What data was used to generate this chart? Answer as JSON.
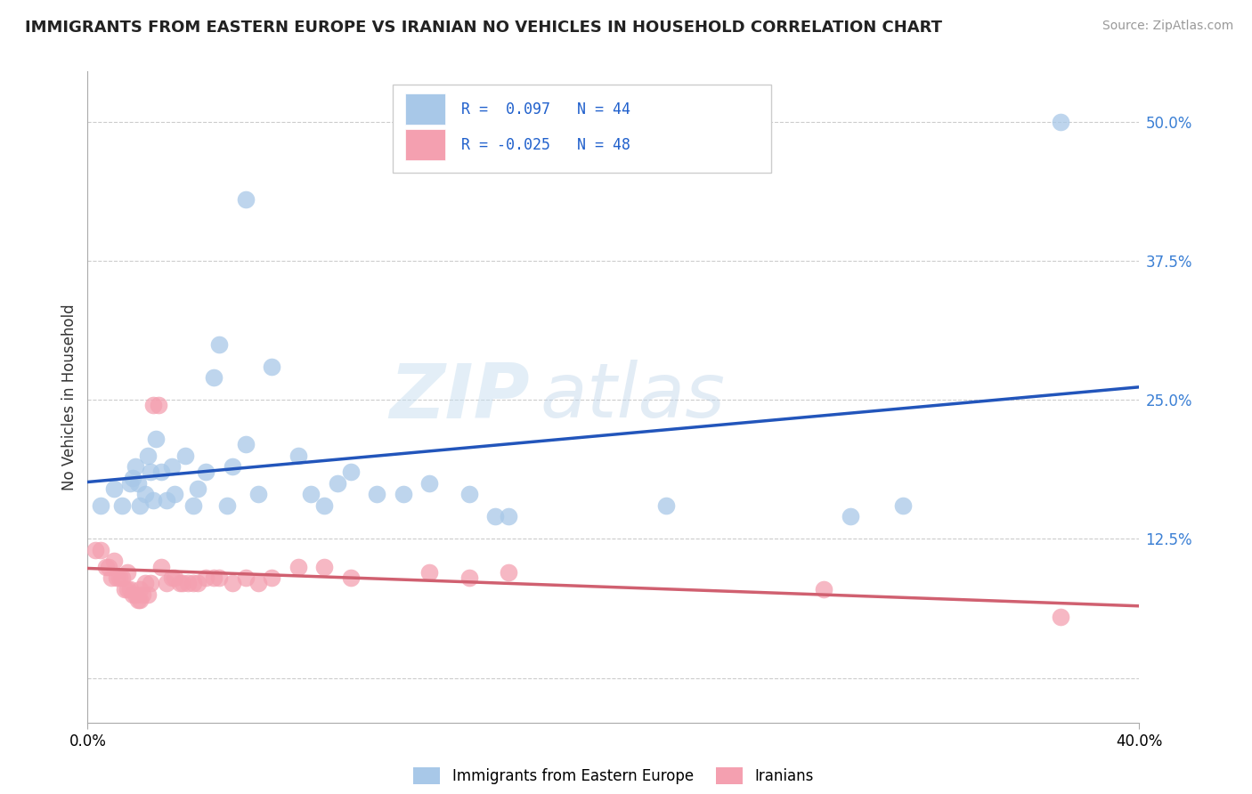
{
  "title": "IMMIGRANTS FROM EASTERN EUROPE VS IRANIAN NO VEHICLES IN HOUSEHOLD CORRELATION CHART",
  "source": "Source: ZipAtlas.com",
  "ylabel": "No Vehicles in Household",
  "y_ticks": [
    0.0,
    0.125,
    0.25,
    0.375,
    0.5
  ],
  "y_tick_labels": [
    "",
    "12.5%",
    "25.0%",
    "37.5%",
    "50.0%"
  ],
  "x_min": 0.0,
  "x_max": 0.4,
  "y_min": -0.04,
  "y_max": 0.545,
  "legend_r_blue": " 0.097",
  "legend_n_blue": "44",
  "legend_r_pink": "-0.025",
  "legend_n_pink": "48",
  "watermark_zip": "ZIP",
  "watermark_atlas": "atlas",
  "blue_color": "#a8c8e8",
  "pink_color": "#f4a0b0",
  "line_blue": "#2255bb",
  "line_pink": "#d06070",
  "blue_scatter": [
    [
      0.005,
      0.155
    ],
    [
      0.01,
      0.17
    ],
    [
      0.013,
      0.155
    ],
    [
      0.016,
      0.175
    ],
    [
      0.017,
      0.18
    ],
    [
      0.018,
      0.19
    ],
    [
      0.019,
      0.175
    ],
    [
      0.02,
      0.155
    ],
    [
      0.022,
      0.165
    ],
    [
      0.023,
      0.2
    ],
    [
      0.024,
      0.185
    ],
    [
      0.025,
      0.16
    ],
    [
      0.026,
      0.215
    ],
    [
      0.028,
      0.185
    ],
    [
      0.03,
      0.16
    ],
    [
      0.032,
      0.19
    ],
    [
      0.033,
      0.165
    ],
    [
      0.037,
      0.2
    ],
    [
      0.04,
      0.155
    ],
    [
      0.042,
      0.17
    ],
    [
      0.045,
      0.185
    ],
    [
      0.048,
      0.27
    ],
    [
      0.05,
      0.3
    ],
    [
      0.053,
      0.155
    ],
    [
      0.055,
      0.19
    ],
    [
      0.06,
      0.21
    ],
    [
      0.065,
      0.165
    ],
    [
      0.07,
      0.28
    ],
    [
      0.08,
      0.2
    ],
    [
      0.085,
      0.165
    ],
    [
      0.09,
      0.155
    ],
    [
      0.095,
      0.175
    ],
    [
      0.1,
      0.185
    ],
    [
      0.11,
      0.165
    ],
    [
      0.12,
      0.165
    ],
    [
      0.13,
      0.175
    ],
    [
      0.145,
      0.165
    ],
    [
      0.155,
      0.145
    ],
    [
      0.16,
      0.145
    ],
    [
      0.22,
      0.155
    ],
    [
      0.29,
      0.145
    ],
    [
      0.31,
      0.155
    ],
    [
      0.37,
      0.5
    ],
    [
      0.06,
      0.43
    ]
  ],
  "pink_scatter": [
    [
      0.003,
      0.115
    ],
    [
      0.005,
      0.115
    ],
    [
      0.007,
      0.1
    ],
    [
      0.008,
      0.1
    ],
    [
      0.009,
      0.09
    ],
    [
      0.01,
      0.105
    ],
    [
      0.011,
      0.09
    ],
    [
      0.012,
      0.09
    ],
    [
      0.013,
      0.09
    ],
    [
      0.014,
      0.08
    ],
    [
      0.015,
      0.08
    ],
    [
      0.015,
      0.095
    ],
    [
      0.016,
      0.08
    ],
    [
      0.017,
      0.075
    ],
    [
      0.018,
      0.075
    ],
    [
      0.019,
      0.07
    ],
    [
      0.02,
      0.07
    ],
    [
      0.02,
      0.08
    ],
    [
      0.021,
      0.075
    ],
    [
      0.022,
      0.085
    ],
    [
      0.023,
      0.075
    ],
    [
      0.024,
      0.085
    ],
    [
      0.025,
      0.245
    ],
    [
      0.027,
      0.245
    ],
    [
      0.028,
      0.1
    ],
    [
      0.03,
      0.085
    ],
    [
      0.032,
      0.09
    ],
    [
      0.033,
      0.09
    ],
    [
      0.035,
      0.085
    ],
    [
      0.036,
      0.085
    ],
    [
      0.038,
      0.085
    ],
    [
      0.04,
      0.085
    ],
    [
      0.042,
      0.085
    ],
    [
      0.045,
      0.09
    ],
    [
      0.048,
      0.09
    ],
    [
      0.05,
      0.09
    ],
    [
      0.055,
      0.085
    ],
    [
      0.06,
      0.09
    ],
    [
      0.065,
      0.085
    ],
    [
      0.07,
      0.09
    ],
    [
      0.08,
      0.1
    ],
    [
      0.09,
      0.1
    ],
    [
      0.1,
      0.09
    ],
    [
      0.13,
      0.095
    ],
    [
      0.145,
      0.09
    ],
    [
      0.16,
      0.095
    ],
    [
      0.28,
      0.08
    ],
    [
      0.37,
      0.055
    ]
  ]
}
